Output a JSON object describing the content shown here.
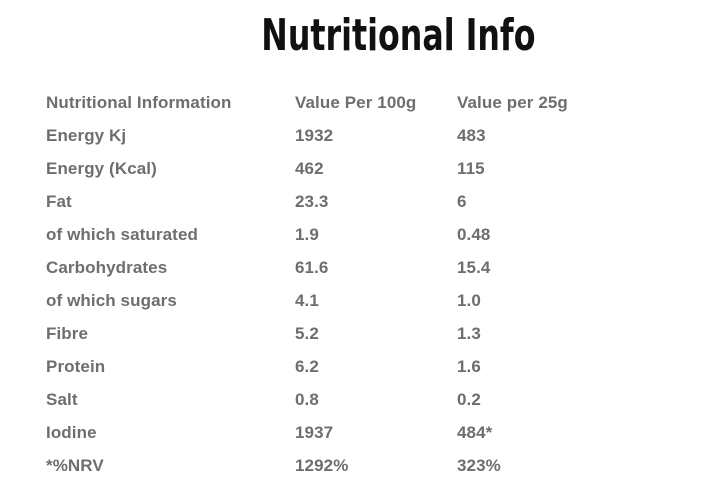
{
  "title": "Nutritional Info",
  "table": {
    "headers": [
      "Nutritional Information",
      "Value Per 100g",
      "Value per 25g"
    ],
    "rows": [
      {
        "label": "Energy Kj",
        "per100g": "1932",
        "per25g": "483"
      },
      {
        "label": "Energy (Kcal)",
        "per100g": "462",
        "per25g": "115"
      },
      {
        "label": "Fat",
        "per100g": "23.3",
        "per25g": "6"
      },
      {
        "label": "of which saturated",
        "per100g": "1.9",
        "per25g": "0.48"
      },
      {
        "label": "Carbohydrates",
        "per100g": "61.6",
        "per25g": "15.4"
      },
      {
        "label": "of which sugars",
        "per100g": "4.1",
        "per25g": "1.0"
      },
      {
        "label": "Fibre",
        "per100g": "5.2",
        "per25g": "1.3"
      },
      {
        "label": "Protein",
        "per100g": "6.2",
        "per25g": "1.6"
      },
      {
        "label": "Salt",
        "per100g": "0.8",
        "per25g": "0.2"
      },
      {
        "label": "Iodine",
        "per100g": "1937",
        "per25g": "484*"
      },
      {
        "label": "*%NRV",
        "per100g": "1292%",
        "per25g": "323%"
      }
    ]
  },
  "colors": {
    "background": "#ffffff",
    "title": "#111111",
    "text": "#6e6e6e"
  }
}
